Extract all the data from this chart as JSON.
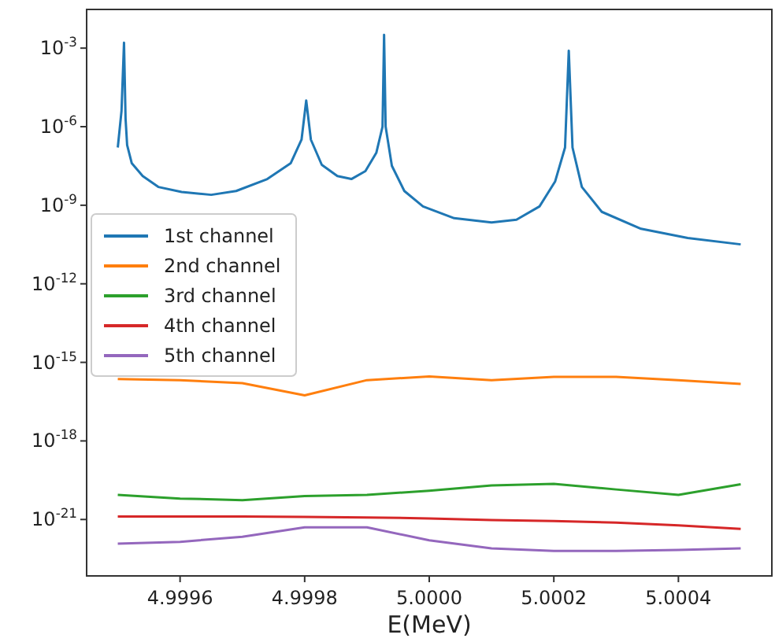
{
  "chart_data": {
    "type": "line",
    "xlabel": "E(MeV)",
    "log": "y",
    "grid": false,
    "legend": "left",
    "line_style": "solid",
    "marker": "none",
    "xlim": [
      4.99945,
      5.00055
    ],
    "xticks": [
      {
        "value": 4.9996,
        "label": "4.9996"
      },
      {
        "value": 4.9998,
        "label": "4.9998"
      },
      {
        "value": 5.0,
        "label": "5.0000"
      },
      {
        "value": 5.0002,
        "label": "5.0002"
      },
      {
        "value": 5.0004,
        "label": "5.0004"
      }
    ],
    "ylim": [
      7e-24,
      0.03
    ],
    "yticks": [
      {
        "value": 1e-21,
        "label": "10$^{-21}$"
      },
      {
        "value": 1e-18,
        "label": "10$^{-18}$"
      },
      {
        "value": 1e-15,
        "label": "10$^{-15}$"
      },
      {
        "value": 1e-12,
        "label": "10$^{-12}$"
      },
      {
        "value": 1e-09,
        "label": "10$^{-9}$"
      },
      {
        "value": 1e-06,
        "label": "10$^{-6}$"
      },
      {
        "value": 0.001,
        "label": "10$^{-3}$"
      }
    ],
    "x": [
      4.9995,
      4.9996,
      4.9997,
      4.9998,
      4.9999,
      5.0,
      5.0001,
      5.0002,
      5.0003,
      5.0004,
      5.0005
    ],
    "series": [
      {
        "name": "1st channel",
        "color": "#1f77b4",
        "x": [
          4.9995,
          4.999506,
          4.99951,
          4.9995125,
          4.999515,
          4.9995225,
          4.99954,
          4.999565,
          4.9996025,
          4.99965,
          4.99969,
          4.99974,
          4.9997775,
          4.999795,
          4.9998025,
          4.99981,
          4.9998275,
          4.9998525,
          4.999875,
          4.9998975,
          4.999915,
          4.999925,
          4.9999275,
          4.99993,
          4.99994,
          4.99996,
          4.99999,
          5.00004,
          5.0001,
          5.00014,
          5.000177,
          5.000202,
          5.000218,
          5.000224,
          5.00023,
          5.000245,
          5.000277,
          5.00034,
          5.000415,
          5.0005
        ],
        "values": [
          1.6e-07,
          4e-06,
          0.0016,
          2e-06,
          2e-07,
          4e-08,
          1.3e-08,
          5e-09,
          3.2e-09,
          2.5e-09,
          3.5e-09,
          1e-08,
          4e-08,
          3.2e-07,
          1e-05,
          3.2e-07,
          3.5e-08,
          1.3e-08,
          1e-08,
          2e-08,
          1e-07,
          1e-06,
          0.0032,
          1e-06,
          3.2e-08,
          3.5e-09,
          9e-10,
          3.2e-10,
          2.2e-10,
          2.8e-10,
          9e-10,
          8e-09,
          1.6e-07,
          0.0008,
          1.6e-07,
          5e-09,
          5.6e-10,
          1.26e-10,
          5.6e-11,
          3.2e-11
        ]
      },
      {
        "name": "2nd channel",
        "color": "#ff7f0e",
        "values": [
          2.3e-16,
          2.1e-16,
          1.6e-16,
          5.5e-17,
          2.1e-16,
          2.9e-16,
          2.1e-16,
          2.8e-16,
          2.8e-16,
          2.1e-16,
          1.5e-16
        ]
      },
      {
        "name": "3rd channel",
        "color": "#2ca02c",
        "values": [
          8.7e-21,
          6.3e-21,
          5.5e-21,
          7.9e-21,
          8.7e-21,
          1.26e-20,
          2e-20,
          2.3e-20,
          1.4e-20,
          8.7e-21,
          2.2e-20
        ]
      },
      {
        "name": "4th channel",
        "color": "#d62728",
        "values": [
          1.3e-21,
          1.3e-21,
          1.3e-21,
          1.26e-21,
          1.2e-21,
          1.1e-21,
          9.5e-22,
          8.7e-22,
          7.6e-22,
          6e-22,
          4.4e-22
        ]
      },
      {
        "name": "5th channel",
        "color": "#9467bd",
        "values": [
          1.2e-22,
          1.4e-22,
          2.2e-22,
          5e-22,
          5e-22,
          1.6e-22,
          7.9e-23,
          6.3e-23,
          6.3e-23,
          6.9e-23,
          7.9e-23
        ]
      }
    ]
  }
}
